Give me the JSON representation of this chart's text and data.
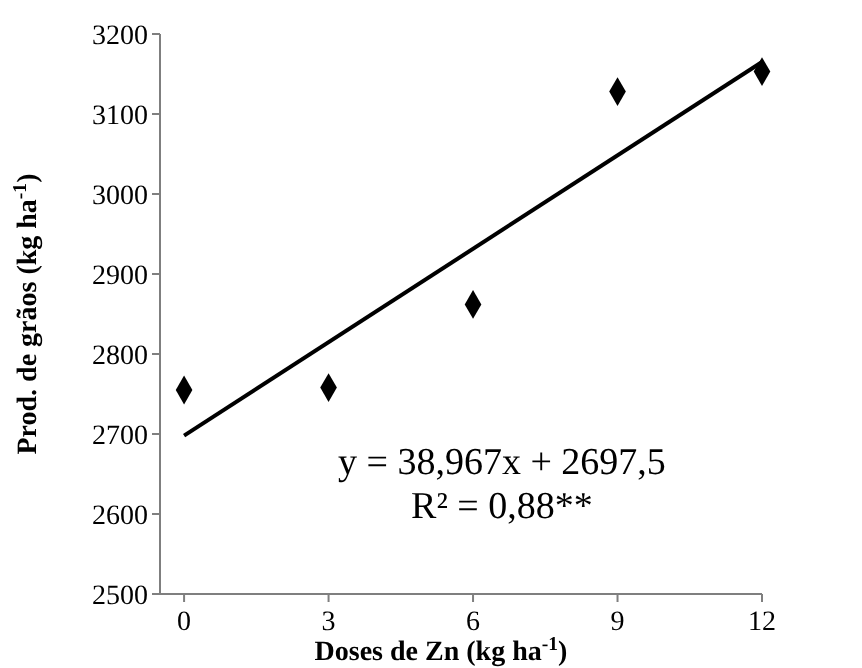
{
  "chart_data": {
    "type": "scatter",
    "xlabel": "Doses de Zn  (kg ha$^{-1}$)",
    "ylabel": "Prod. de grãos (kg ha$^{-1}$)",
    "x": [
      0,
      3,
      6,
      9,
      12
    ],
    "series": [
      {
        "type": "scatter",
        "color": "#000000",
        "values": [
          2755,
          2758,
          2862,
          3128,
          3153
        ],
        "marker": "diamond"
      },
      {
        "type": "line",
        "color": "#000000",
        "x": [
          0,
          12
        ],
        "values": [
          2698,
          3165
        ],
        "marker": "none",
        "line_style": "solid"
      }
    ],
    "xlim": [
      -0.5,
      12
    ],
    "xticks": [
      0,
      3,
      6,
      9,
      12
    ],
    "ylim": [
      2500,
      3200
    ],
    "yticks": [
      2500,
      2600,
      2700,
      2800,
      2900,
      3000,
      3100,
      3200
    ],
    "grid": false,
    "annotations": [
      "y = 38,967x + 2697,5",
      "R² = 0,88**"
    ]
  }
}
